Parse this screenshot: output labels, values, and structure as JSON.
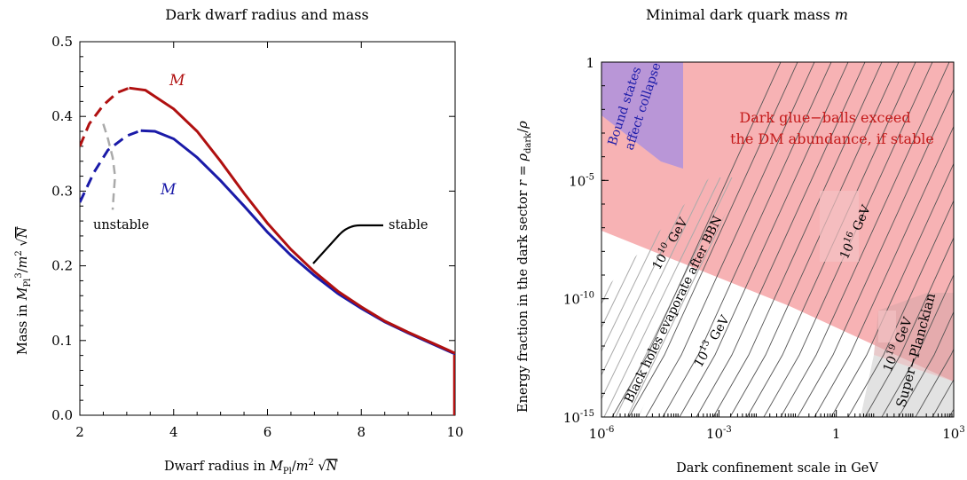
{
  "chart_data": [
    {
      "type": "line",
      "title": "Dark dwarf radius and mass",
      "xlabel": "Dwarf radius in M_Pl/m^2 √N",
      "ylabel": "Mass in M_Pl^3/m^2 √N",
      "xlim": [
        2,
        10
      ],
      "ylim": [
        0,
        0.5
      ],
      "xticks": [
        "2",
        "4",
        "6",
        "8",
        "10"
      ],
      "yticks": [
        "0.0",
        "0.1",
        "0.2",
        "0.3",
        "0.4",
        "0.5"
      ],
      "grid": false,
      "colors": {
        "M": "#b01010",
        "Mcal": "#1a1aa8",
        "unstable_branch": "#aaaaaa"
      },
      "series": [
        {
          "name": "M",
          "dashed_part": [
            [
              2.0,
              0.36
            ],
            [
              2.2,
              0.39
            ],
            [
              2.5,
              0.415
            ],
            [
              2.8,
              0.432
            ],
            [
              3.05,
              0.438
            ]
          ],
          "values": [
            [
              3.05,
              0.438
            ],
            [
              3.4,
              0.435
            ],
            [
              4.0,
              0.41
            ],
            [
              4.5,
              0.38
            ],
            [
              5.0,
              0.34
            ],
            [
              5.5,
              0.297
            ],
            [
              6.0,
              0.257
            ],
            [
              6.5,
              0.222
            ],
            [
              7.0,
              0.192
            ],
            [
              7.5,
              0.166
            ],
            [
              8.0,
              0.145
            ],
            [
              8.5,
              0.126
            ],
            [
              9.0,
              0.111
            ],
            [
              9.5,
              0.097
            ],
            [
              10.0,
              0.083
            ]
          ]
        },
        {
          "name": "M",
          "dashed_part": [
            [
              2.0,
              0.285
            ],
            [
              2.3,
              0.325
            ],
            [
              2.6,
              0.355
            ],
            [
              3.0,
              0.374
            ],
            [
              3.3,
              0.381
            ]
          ],
          "values": [
            [
              3.3,
              0.381
            ],
            [
              3.6,
              0.38
            ],
            [
              4.0,
              0.37
            ],
            [
              4.5,
              0.345
            ],
            [
              5.0,
              0.314
            ],
            [
              5.5,
              0.28
            ],
            [
              6.0,
              0.245
            ],
            [
              6.5,
              0.214
            ],
            [
              7.0,
              0.187
            ],
            [
              7.5,
              0.163
            ],
            [
              8.0,
              0.143
            ],
            [
              8.5,
              0.125
            ],
            [
              9.0,
              0.11
            ],
            [
              9.5,
              0.096
            ],
            [
              10.0,
              0.082
            ]
          ]
        }
      ],
      "unstable_branch": [
        [
          2.5,
          0.39
        ],
        [
          2.6,
          0.37
        ],
        [
          2.7,
          0.345
        ],
        [
          2.75,
          0.32
        ],
        [
          2.72,
          0.295
        ],
        [
          2.7,
          0.275
        ]
      ],
      "annotations": {
        "m_label": "M",
        "mcal_label": "M",
        "unstable": "unstable",
        "stable": "stable"
      }
    },
    {
      "type": "area",
      "title": "Minimal dark quark mass m",
      "xlabel": "Dark confinement scale in GeV",
      "ylabel": "Energy fraction in the dark sector r = ρ_dark/ρ",
      "x_scale": "log",
      "y_scale": "log",
      "xlim": [
        "1e-6",
        "1e3"
      ],
      "ylim": [
        "1e-15",
        "1"
      ],
      "xticks": [
        "10^-6",
        "10^-3",
        "1",
        "10^3"
      ],
      "yticks": [
        "10^-15",
        "10^-10",
        "10^-5",
        "1"
      ],
      "regions": [
        {
          "label": "Dark glue−balls exceed the DM abundance, if stable",
          "color": "#f7b2b4"
        },
        {
          "label": "Bound states affect collapse",
          "color": "#bcbcf5"
        },
        {
          "label": "Black holes evaporate after BBN",
          "color": "hatched"
        },
        {
          "label": "Super−Planckian",
          "color": "#e2e2e2"
        }
      ],
      "contours": [
        {
          "label": "10^10 GeV"
        },
        {
          "label": "10^13 GeV"
        },
        {
          "label": "10^16 GeV"
        },
        {
          "label": "10^19 GeV"
        }
      ]
    }
  ],
  "text": {
    "left_title": "Dark dwarf radius and mass",
    "left_xlabel_a": "Dwarf radius in ",
    "left_ylabel_a": "Mass in ",
    "right_title_a": "Minimal dark quark mass ",
    "right_title_b": "m",
    "right_xlabel": "Dark confinement scale in GeV",
    "right_ylabel_a": "Energy fraction in the dark sector ",
    "glue1": "Dark glue−balls exceed",
    "glue2": "the DM abundance, if stable",
    "bound1": "Bound states",
    "bound2": "affect collapse",
    "bh": "Black holes evaporate after BBN",
    "c10": "10",
    "c13": "10",
    "c16": "10",
    "c19": "10",
    "gev": " GeV",
    "superplanck": "Super−Planckian"
  }
}
